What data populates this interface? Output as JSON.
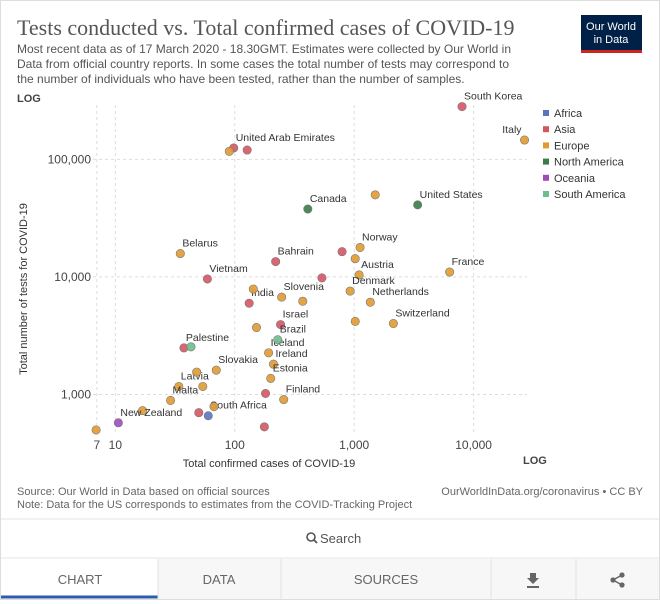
{
  "header": {
    "logo_line1": "Our World",
    "logo_line2": "in Data"
  },
  "chart_data": {
    "type": "scatter",
    "title": "Tests conducted vs. Total confirmed cases of COVID-19",
    "subtitle_lines": [
      "Most recent data as of 17 March 2020 - 18.30GMT. Estimates were collected by Our World in",
      "Data from official country reports. In some cases the total number of tests may correspond to",
      "the number of individuals who have been tested, rather than the number of samples."
    ],
    "y_scale_label": "LOG",
    "x_scale_label": "LOG",
    "x_label": "Total confirmed cases of COVID-19",
    "y_label": "Total number of tests for COVID-19",
    "xscale": "log",
    "yscale": "log",
    "grid": true,
    "legend": "right",
    "xlim": [
      6.5,
      28000
    ],
    "ylim": [
      470,
      290000
    ],
    "xticks": [
      7,
      10,
      100,
      {
        "value": 1000,
        "label": "1,000"
      },
      {
        "value": 10000,
        "label": "10,000"
      }
    ],
    "yticks": [
      {
        "value": 1000,
        "label": "1,000"
      },
      {
        "value": 10000,
        "label": "10,000"
      },
      {
        "value": 100000,
        "label": "100,000"
      }
    ],
    "series": [
      {
        "name": "Africa",
        "color": "#5b74c0",
        "x": [
          60
        ],
        "y": [
          659
        ],
        "labels": [
          "South Africa"
        ]
      },
      {
        "name": "Asia",
        "color": "#d65565",
        "x": [
          8000,
          98,
          220,
          59,
          132,
          242,
          37.5,
          127,
          792,
          537,
          181,
          50,
          177
        ],
        "y": [
          281000,
          125000,
          13500,
          9600,
          5970,
          3930,
          2490,
          120000,
          16400,
          9800,
          1020,
          700,
          530
        ],
        "labels": [
          "South Korea",
          "United Arab Emirates",
          "Bahrain",
          "Vietnam",
          "India",
          "Israel",
          "Palestine",
          null,
          null,
          null,
          null,
          null,
          null
        ]
      },
      {
        "name": "Europe",
        "color": "#e19a2f",
        "x": [
          26700,
          1120,
          35,
          6300,
          1100,
          925,
          1365,
          247,
          2130,
          192,
          211,
          70,
          200,
          34,
          29,
          257,
          90,
          1500,
          1020,
          143,
          371,
          152,
          1020,
          48,
          54,
          16.9,
          67,
          6.9
        ],
        "y": [
          146000,
          17800,
          15800,
          11000,
          10400,
          7570,
          6090,
          6730,
          4010,
          2260,
          1810,
          1610,
          1370,
          1170,
          890,
          905,
          117000,
          49900,
          14300,
          7880,
          6210,
          3710,
          4180,
          1550,
          1170,
          728,
          788,
          499
        ],
        "labels": [
          "Italy",
          "Norway",
          "Belarus",
          "France",
          "Austria",
          "Denmark",
          "Netherlands",
          "Slovenia",
          "Switzerland",
          "Iceland",
          "Ireland",
          "Slovakia",
          "Estonia",
          "Latvia",
          "Malta",
          "Finland",
          null,
          null,
          null,
          null,
          null,
          null,
          null,
          null,
          null,
          null,
          null,
          null
        ]
      },
      {
        "name": "North America",
        "color": "#3a7b49",
        "x": [
          409,
          3400
        ],
        "y": [
          37800,
          41000
        ],
        "labels": [
          "Canada",
          "United States"
        ]
      },
      {
        "name": "Oceania",
        "color": "#9e4cbd",
        "x": [
          10.6
        ],
        "y": [
          574
        ],
        "labels": [
          "New Zealand"
        ]
      },
      {
        "name": "South America",
        "color": "#6cbf8b",
        "x": [
          229,
          43
        ],
        "y": [
          2920,
          2540
        ],
        "labels": [
          "Brazil",
          null
        ]
      }
    ],
    "source": "Source: Our World in Data based on official sources",
    "note": "Note: Data for the US corresponds to estimates from the COVID-Tracking Project",
    "credit": "OurWorldInData.org/coronavirus • CC BY"
  },
  "controls": {
    "search": "Search",
    "tabs": [
      "CHART",
      "DATA",
      "SOURCES"
    ]
  }
}
